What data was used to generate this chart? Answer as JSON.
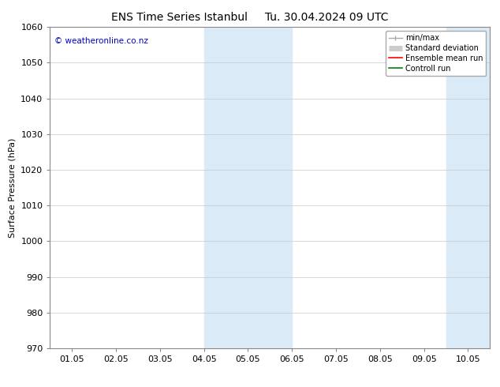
{
  "title_left": "ENS Time Series Istanbul",
  "title_right": "Tu. 30.04.2024 09 UTC",
  "ylabel": "Surface Pressure (hPa)",
  "ylim": [
    970,
    1060
  ],
  "yticks": [
    970,
    980,
    990,
    1000,
    1010,
    1020,
    1030,
    1040,
    1050,
    1060
  ],
  "xlim": [
    -0.5,
    9.5
  ],
  "xtick_positions": [
    0,
    1,
    2,
    3,
    4,
    5,
    6,
    7,
    8,
    9
  ],
  "xtick_labels": [
    "01.05",
    "02.05",
    "03.05",
    "04.05",
    "05.05",
    "06.05",
    "07.05",
    "08.05",
    "09.05",
    "10.05"
  ],
  "shaded_regions": [
    {
      "xmin": 3.0,
      "xmax": 5.0,
      "color": "#daeaf7"
    },
    {
      "xmin": 8.5,
      "xmax": 10.0,
      "color": "#daeaf7"
    }
  ],
  "watermark": "© weatheronline.co.nz",
  "watermark_color": "#0000cc",
  "bg_color": "#ffffff",
  "grid_color": "#c8c8c8",
  "title_fontsize": 10,
  "label_fontsize": 8,
  "tick_fontsize": 8
}
